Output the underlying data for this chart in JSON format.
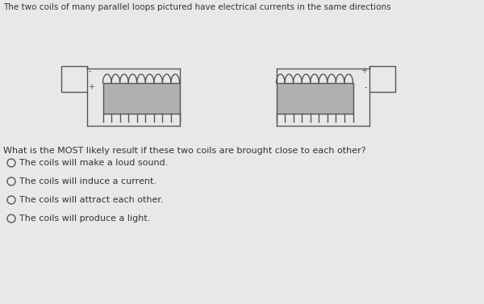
{
  "bg_color": "#e8e8e8",
  "title_text": "The two coils of many parallel loops pictured have electrical currents in the same directions",
  "question_text": "What is the MOST likely result if these two coils are brought close to each other?",
  "options": [
    "The coils will make a loud sound.",
    "The coils will induce a current.",
    "The coils will attract each other.",
    "The coils will produce a light."
  ],
  "title_fontsize": 7.5,
  "question_fontsize": 8.0,
  "option_fontsize": 8.0,
  "text_color": "#333333",
  "line_color": "#555555",
  "coil_fill": "#b0b0b0",
  "bat_fill": "#e8e8e8"
}
